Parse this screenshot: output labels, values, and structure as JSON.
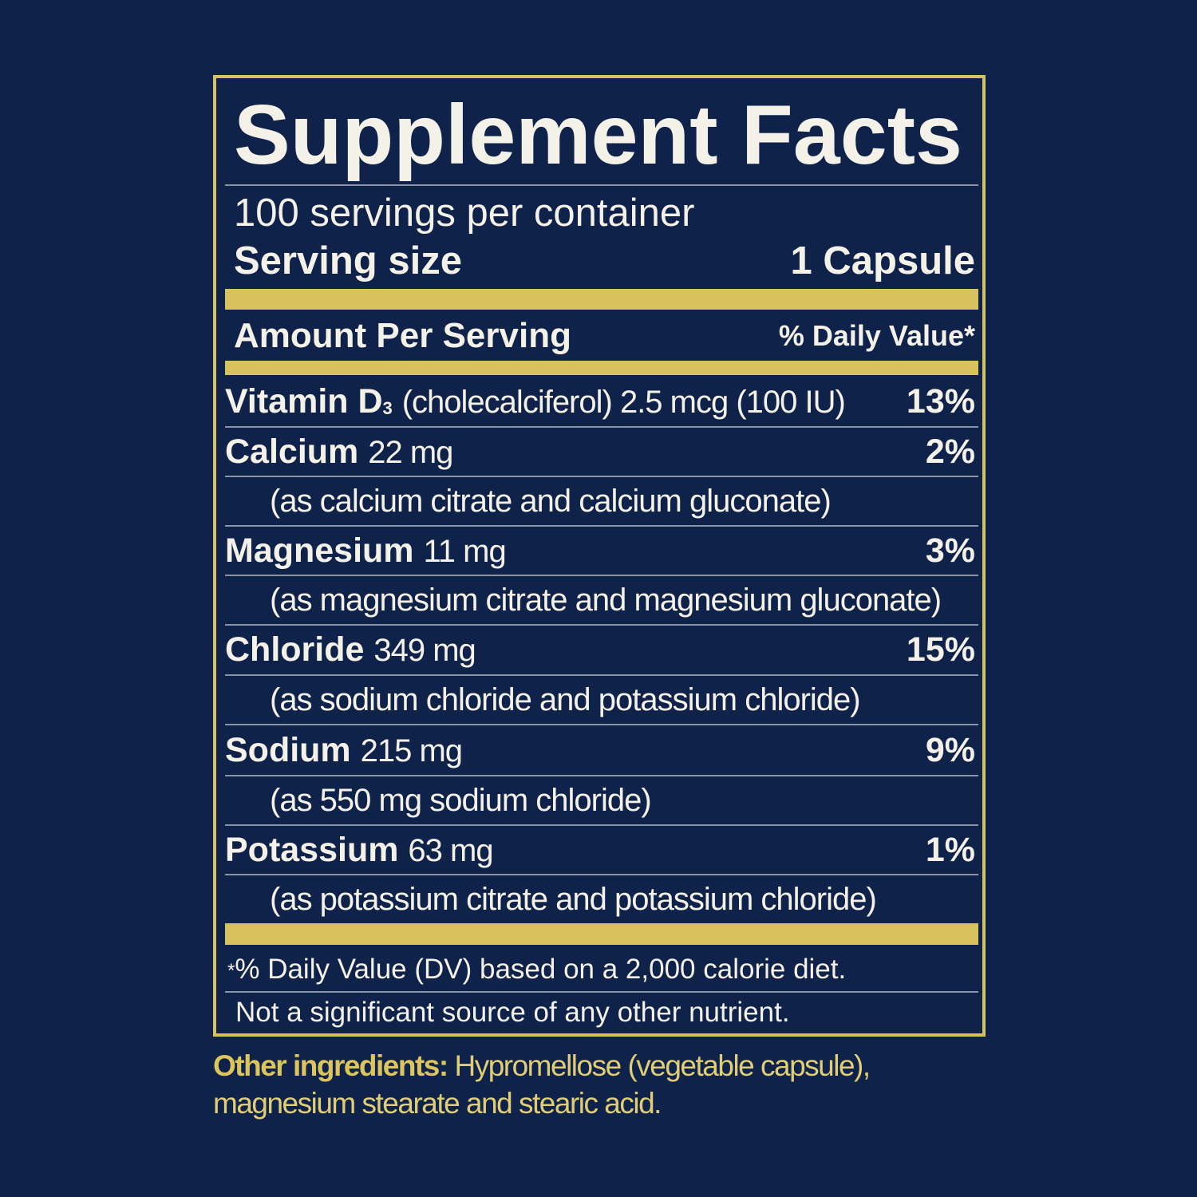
{
  "title": "Supplement Facts",
  "servings_per_container": "100 servings per container",
  "serving_size": {
    "label": "Serving size",
    "value": "1 Capsule"
  },
  "header": {
    "amount": "Amount Per Serving",
    "dv": "% Daily Value*"
  },
  "nutrients": [
    {
      "name": "Vitamin D",
      "subscript": "3",
      "amount": "(cholecalciferol) 2.5 mcg (100 IU)",
      "dv": "13%"
    },
    {
      "name": "Calcium",
      "amount": "22 mg",
      "dv": "2%",
      "source": "(as calcium citrate and calcium gluconate)"
    },
    {
      "name": "Magnesium",
      "amount": "11 mg",
      "dv": "3%",
      "source": "(as magnesium citrate and magnesium gluconate)"
    },
    {
      "name": "Chloride",
      "amount": "349 mg",
      "dv": "15%",
      "source": "(as sodium chloride and potassium chloride)"
    },
    {
      "name": "Sodium",
      "amount": "215 mg",
      "dv": "9%",
      "source": "(as 550 mg sodium chloride)"
    },
    {
      "name": "Potassium",
      "amount": "63 mg",
      "dv": "1%",
      "source": "(as potassium citrate and potassium chloride)"
    }
  ],
  "footnote": {
    "asterisk": "*",
    "text": "% Daily Value (DV) based on a 2,000 calorie diet."
  },
  "not_significant": "Not a significant source of any other nutrient.",
  "other_ingredients": {
    "label": "Other ingredients:",
    "text": " Hypromellose (vegetable capsule), magnesium stearate and stearic acid."
  },
  "colors": {
    "background": "#0f2249",
    "gold": "#d8c25e",
    "text": "#f4f1e8"
  }
}
